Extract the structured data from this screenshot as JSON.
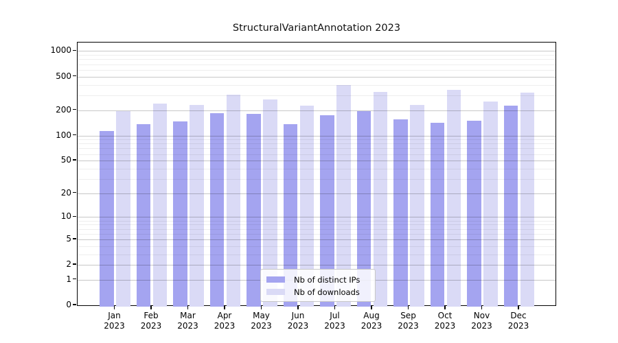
{
  "chart_data": {
    "type": "bar",
    "title": "StructuralVariantAnnotation 2023",
    "categories": [
      "Jan",
      "Feb",
      "Mar",
      "Apr",
      "May",
      "Jun",
      "Jul",
      "Aug",
      "Sep",
      "Oct",
      "Nov",
      "Dec"
    ],
    "xtick_year_line": "2023",
    "series": [
      {
        "name": "Nb of distinct IPs",
        "color": "#a4a4f0",
        "values": [
          113,
          136,
          146,
          184,
          180,
          137,
          173,
          196,
          156,
          141,
          150,
          227
        ]
      },
      {
        "name": "Nb of downloads",
        "color": "#dadaf6",
        "values": [
          195,
          238,
          230,
          303,
          268,
          227,
          396,
          330,
          232,
          348,
          253,
          321
        ]
      }
    ],
    "yscale": "log(value+1)",
    "yticks": [
      0,
      1,
      2,
      5,
      10,
      20,
      50,
      100,
      200,
      500,
      1000
    ],
    "minor_yticks": [
      3,
      4,
      6,
      7,
      8,
      9,
      30,
      40,
      60,
      70,
      80,
      90,
      300,
      400,
      600,
      700,
      800,
      900
    ],
    "ylim": [
      0,
      1250
    ],
    "grid": true,
    "legend_position": "lower center",
    "colors": {
      "background": "#ffffff",
      "axis": "#000000",
      "major_grid": "#c7c7c7",
      "minor_grid": "#ededed"
    }
  }
}
